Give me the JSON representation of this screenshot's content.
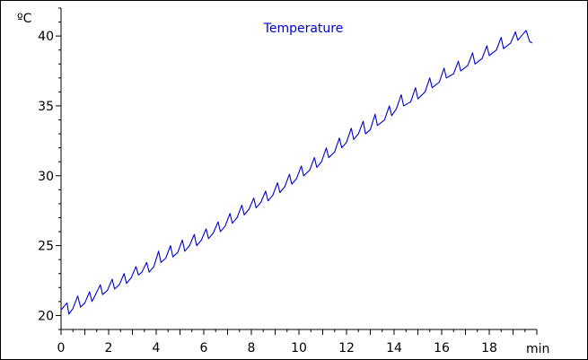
{
  "chart_data": {
    "type": "line",
    "title": "Temperature",
    "xlabel": "",
    "ylabel": "",
    "x_unit": "min",
    "y_unit": "ºC",
    "xlim": [
      0,
      20
    ],
    "ylim": [
      19,
      42
    ],
    "x_ticks": [
      0,
      2,
      4,
      6,
      8,
      10,
      12,
      14,
      16,
      18
    ],
    "y_ticks": [
      20,
      25,
      30,
      35,
      40
    ],
    "x_tick_labels": [
      "0",
      "2",
      "4",
      "6",
      "8",
      "10",
      "12",
      "14",
      "16",
      "18"
    ],
    "y_tick_labels": [
      "20",
      "25",
      "30",
      "35",
      "40"
    ],
    "grid": false,
    "line_color": "#0000cc",
    "series": [
      {
        "name": "",
        "x": [
          0.0,
          0.25,
          0.33,
          0.5,
          0.7,
          0.82,
          1.0,
          1.2,
          1.3,
          1.45,
          1.65,
          1.75,
          1.95,
          2.15,
          2.25,
          2.45,
          2.65,
          2.75,
          2.95,
          3.15,
          3.25,
          3.4,
          3.6,
          3.7,
          3.9,
          4.1,
          4.2,
          4.4,
          4.6,
          4.7,
          4.9,
          5.1,
          5.2,
          5.4,
          5.6,
          5.7,
          5.9,
          6.1,
          6.2,
          6.4,
          6.6,
          6.7,
          6.9,
          7.1,
          7.2,
          7.4,
          7.6,
          7.7,
          7.9,
          8.1,
          8.2,
          8.4,
          8.6,
          8.7,
          8.9,
          9.1,
          9.2,
          9.4,
          9.6,
          9.7,
          9.9,
          10.1,
          10.2,
          10.45,
          10.65,
          10.75,
          10.95,
          11.15,
          11.25,
          11.5,
          11.7,
          11.8,
          12.0,
          12.2,
          12.3,
          12.5,
          12.7,
          12.8,
          13.0,
          13.2,
          13.3,
          13.6,
          13.8,
          13.9,
          14.1,
          14.3,
          14.4,
          14.7,
          14.9,
          15.0,
          15.3,
          15.5,
          15.6,
          15.9,
          16.1,
          16.2,
          16.5,
          16.7,
          16.8,
          17.1,
          17.3,
          17.4,
          17.7,
          17.9,
          18.0,
          18.3,
          18.5,
          18.6,
          18.9,
          19.1,
          19.2,
          19.4,
          19.55,
          19.7,
          19.8
        ],
        "y": [
          20.4,
          20.9,
          20.1,
          20.5,
          21.4,
          20.6,
          20.9,
          21.7,
          21.0,
          21.5,
          22.2,
          21.5,
          21.8,
          22.6,
          21.9,
          22.2,
          23.0,
          22.3,
          22.7,
          23.5,
          22.9,
          23.1,
          23.8,
          23.1,
          23.5,
          24.6,
          23.8,
          24.1,
          25.0,
          24.2,
          24.5,
          25.4,
          24.6,
          25.0,
          25.8,
          25.0,
          25.4,
          26.2,
          25.5,
          25.9,
          26.7,
          26.0,
          26.4,
          27.3,
          26.6,
          27.0,
          27.9,
          27.2,
          27.6,
          28.4,
          27.7,
          28.1,
          28.9,
          28.2,
          28.6,
          29.5,
          28.8,
          29.2,
          30.1,
          29.4,
          29.8,
          30.7,
          30.0,
          30.4,
          31.3,
          30.6,
          31.0,
          32.0,
          31.3,
          31.7,
          32.7,
          32.0,
          32.4,
          33.4,
          32.6,
          33.0,
          33.9,
          33.0,
          33.3,
          34.4,
          33.6,
          34.0,
          35.0,
          34.3,
          34.8,
          35.8,
          35.0,
          35.3,
          36.3,
          35.5,
          36.0,
          37.0,
          36.3,
          36.7,
          37.7,
          37.0,
          37.3,
          38.2,
          37.5,
          37.9,
          38.8,
          38.0,
          38.4,
          39.3,
          38.6,
          39.0,
          39.9,
          39.1,
          39.5,
          40.3,
          39.7,
          40.1,
          40.4,
          39.6,
          39.5
        ]
      }
    ]
  }
}
